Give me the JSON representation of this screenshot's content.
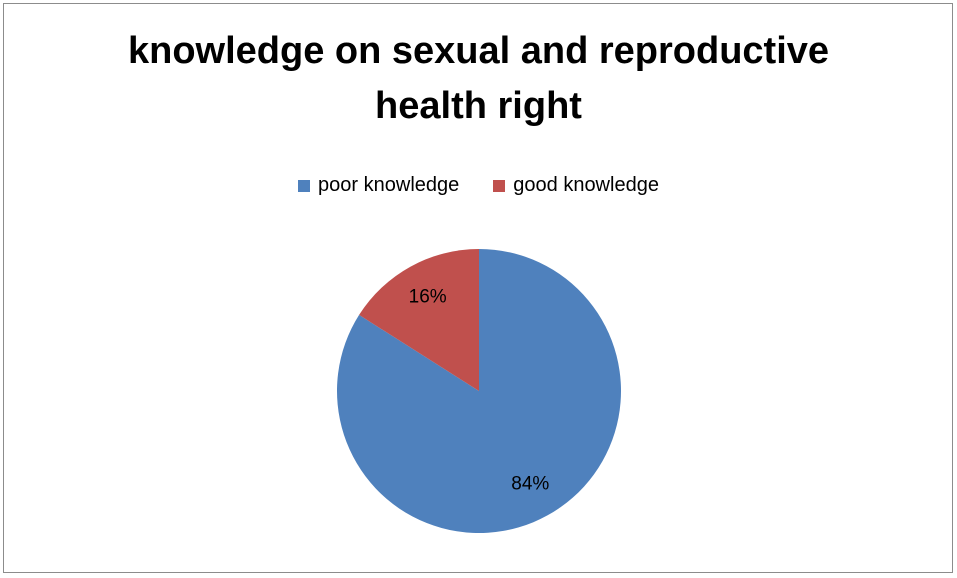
{
  "chart_data": {
    "type": "pie",
    "title": "knowledge on sexual and reproductive health right",
    "categories": [
      "poor knowledge",
      "good knowledge"
    ],
    "values": [
      84,
      16
    ],
    "value_labels": [
      "84%",
      "16%"
    ],
    "colors": [
      "#4f81bd",
      "#c0504d"
    ],
    "legend": "top"
  }
}
